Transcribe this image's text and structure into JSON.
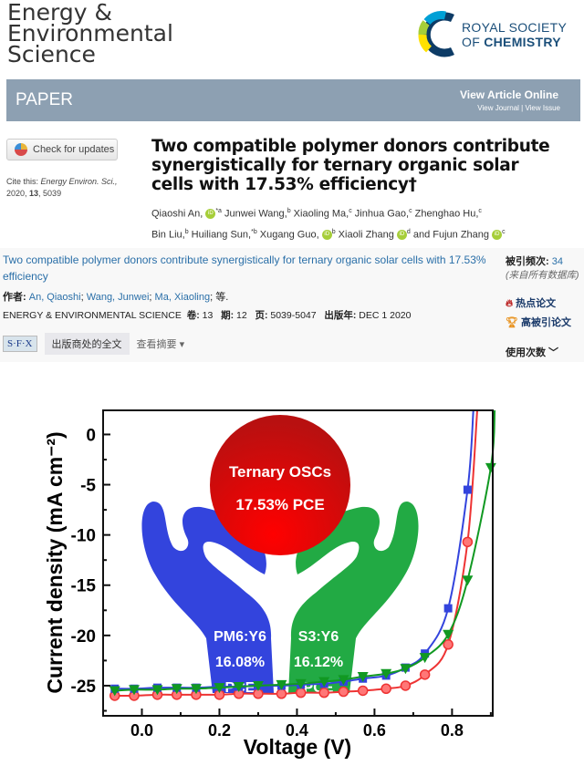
{
  "journal": {
    "name_lines": [
      "Energy &",
      "Environmental",
      "Science"
    ]
  },
  "publisher": {
    "line1": "ROYAL SOCIETY",
    "line2_pre": "OF ",
    "line2_bold": "CHEMISTRY",
    "colors": [
      "#00a0d6",
      "#0d3b66",
      "#a6ce39",
      "#ffe100"
    ]
  },
  "banner": {
    "type": "PAPER",
    "view_online": "View Article Online",
    "links": "View Journal | View Issue",
    "color": "#8da0b2"
  },
  "check_updates": "Check for updates",
  "cite": {
    "label": "Cite this: ",
    "journal": "Energy Environ. Sci.,",
    "year_vol": "2020, ",
    "vol": "13",
    "page": ", 5039"
  },
  "article": {
    "title": "Two compatible polymer donors contribute synergistically for ternary organic solar cells with 17.53% efficiency†",
    "authors": [
      {
        "name": "Qiaoshi An,",
        "orcid": true,
        "sup": "*a"
      },
      {
        "name": "Junwei Wang,",
        "sup": "b"
      },
      {
        "name": "Xiaoling Ma,",
        "sup": "c"
      },
      {
        "name": "Jinhua Gao,",
        "sup": "c"
      },
      {
        "name": "Zhenghao Hu,",
        "sup": "c"
      },
      {
        "name": "Bin Liu,",
        "sup": "b"
      },
      {
        "name": "Huiliang Sun,",
        "sup": "*b"
      },
      {
        "name": "Xugang Guo,",
        "orcid": true,
        "sup": "b"
      },
      {
        "name": "Xiaoli Zhang",
        "orcid": true,
        "sup": "d"
      },
      {
        "name": "and Fujun Zhang",
        "orcid": true,
        "sup": "c"
      }
    ]
  },
  "wos": {
    "title": "Two compatible polymer donors contribute synergistically for ternary organic solar cells with 17.53% efficiency",
    "authors_label": "作者: ",
    "authors": [
      "An, Qiaoshi",
      "Wang, Junwei",
      "Ma, Xiaoling"
    ],
    "etal": " 等.",
    "source": "ENERGY & ENVIRONMENTAL SCIENCE",
    "vol_label": "卷: ",
    "vol": "13",
    "issue_label": "期: ",
    "issue": "12",
    "pages_label": "页: ",
    "pages": "5039-5047",
    "date_label": "出版年: ",
    "date": "DEC 1 2020",
    "sfx": "S·F·X",
    "fulltext": "出版商处的全文",
    "abstract": "查看摘要 ▾",
    "cited_label": "被引频次: ",
    "cited": "34",
    "cited_src": "(来自所有数据库)",
    "hot": "热点论文",
    "highly_cited": "高被引论文",
    "usage": "使用次数 ﹀"
  },
  "chart_data": {
    "type": "line",
    "xlabel": "Voltage (V)",
    "ylabel": "Current density (mA cm⁻²)",
    "xlim": [
      -0.1,
      0.905
    ],
    "ylim": [
      -28,
      2.4
    ],
    "xticks": [
      0.0,
      0.2,
      0.4,
      0.6,
      0.8
    ],
    "xtick_labels": [
      "0.0",
      "0.2",
      "0.4",
      "0.6",
      "0.8"
    ],
    "yticks": [
      0,
      -5,
      -10,
      -15,
      -20,
      -25
    ],
    "ytick_labels": [
      "0",
      "-5",
      "-10",
      "-15",
      "-20",
      "-25"
    ],
    "grid": false,
    "series": [
      {
        "color": "#3344dd",
        "marker": "square",
        "x": [
          -0.07,
          -0.02,
          0.04,
          0.09,
          0.14,
          0.2,
          0.25,
          0.3,
          0.36,
          0.41,
          0.47,
          0.52,
          0.57,
          0.63,
          0.68,
          0.73,
          0.79,
          0.84
        ],
        "y": [
          -25.3,
          -25.3,
          -25.2,
          -25.2,
          -25.2,
          -25.1,
          -25.1,
          -25.0,
          -25.0,
          -24.9,
          -24.8,
          -24.6,
          -24.3,
          -24.0,
          -23.2,
          -21.8,
          -17.3,
          -5.5
        ],
        "line_end": [
          0.855,
          2.4
        ]
      },
      {
        "color": "#ee3333",
        "marker": "circle",
        "x": [
          -0.07,
          -0.02,
          0.04,
          0.09,
          0.14,
          0.2,
          0.25,
          0.3,
          0.36,
          0.41,
          0.47,
          0.52,
          0.57,
          0.63,
          0.68,
          0.73,
          0.79,
          0.84
        ],
        "y": [
          -26.0,
          -26.0,
          -25.9,
          -25.9,
          -25.9,
          -25.9,
          -25.8,
          -25.8,
          -25.8,
          -25.7,
          -25.7,
          -25.6,
          -25.5,
          -25.3,
          -25.0,
          -23.9,
          -20.9,
          -10.7
        ],
        "line_end": [
          0.865,
          2.4
        ]
      },
      {
        "color": "#119922",
        "marker": "triangle-down",
        "x": [
          -0.07,
          -0.02,
          0.04,
          0.09,
          0.14,
          0.2,
          0.25,
          0.3,
          0.36,
          0.41,
          0.47,
          0.52,
          0.57,
          0.63,
          0.68,
          0.73,
          0.79,
          0.84,
          0.9
        ],
        "y": [
          -25.5,
          -25.4,
          -25.4,
          -25.3,
          -25.3,
          -25.2,
          -25.1,
          -25.0,
          -24.9,
          -24.8,
          -24.6,
          -24.4,
          -24.1,
          -23.8,
          -23.3,
          -22.2,
          -19.9,
          -14.5,
          -3.3
        ],
        "line_end": [
          0.91,
          2.4
        ]
      }
    ],
    "annotations": {
      "ternary": "Ternary OSCs",
      "ternary_pce": "17.53% PCE",
      "left_hand": [
        "PM6:Y6",
        "16.08%",
        "PCE"
      ],
      "right_hand": [
        "S3:Y6",
        "16.12%",
        "PCE"
      ],
      "left_color": "#3344dd",
      "right_color": "#22aa44",
      "ball_color": "#ee1111"
    }
  }
}
